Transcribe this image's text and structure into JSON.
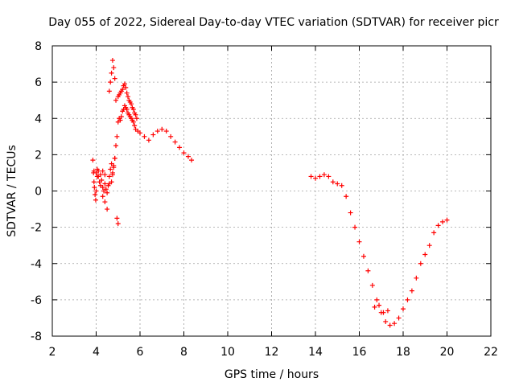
{
  "chart_data": {
    "type": "scatter",
    "title": "Day 055 of 2022, Sidereal Day-to-day VTEC variation (SDTVAR) for receiver picr",
    "xlabel": "GPS time / hours",
    "ylabel": "SDTVAR / TECUs",
    "xlim": [
      2,
      22
    ],
    "ylim": [
      -8,
      8
    ],
    "xticks": [
      2,
      4,
      6,
      8,
      10,
      12,
      14,
      16,
      18,
      20,
      22
    ],
    "yticks": [
      -8,
      -6,
      -4,
      -2,
      0,
      2,
      4,
      6,
      8
    ],
    "grid": true,
    "marker": "+",
    "series_color": "#ff0000",
    "series": [
      {
        "name": "SDTVAR",
        "x": [
          3.85,
          3.88,
          3.9,
          3.92,
          3.95,
          3.98,
          4.0,
          4.05,
          4.1,
          4.15,
          4.2,
          4.25,
          4.3,
          4.35,
          4.4,
          4.45,
          4.5,
          4.55,
          4.6,
          4.65,
          4.7,
          4.75,
          4.8,
          4.85,
          4.9,
          4.95,
          5.0,
          5.05,
          5.1,
          5.15,
          5.2,
          5.25,
          5.3,
          5.35,
          5.4,
          5.45,
          5.5,
          5.55,
          5.6,
          5.65,
          5.7,
          5.75,
          5.8,
          5.9,
          6.0,
          6.2,
          6.4,
          6.6,
          6.8,
          7.0,
          7.2,
          7.4,
          7.6,
          7.8,
          8.0,
          8.2,
          8.35,
          3.9,
          4.0,
          4.05,
          4.1,
          4.2,
          4.3,
          4.4,
          4.5,
          4.6,
          4.7,
          4.75,
          4.8,
          4.85,
          4.9,
          5.0,
          5.05,
          5.1,
          5.15,
          5.2,
          5.25,
          5.3,
          5.35,
          5.4,
          5.45,
          5.5,
          5.55,
          5.6,
          5.65,
          5.7,
          5.75,
          5.8,
          5.85,
          4.3,
          4.4,
          4.95,
          5.0,
          4.6,
          4.65,
          4.7,
          4.75,
          4.8,
          4.85,
          13.8,
          14.0,
          14.2,
          14.4,
          14.6,
          14.8,
          15.0,
          15.2,
          15.4,
          15.6,
          15.8,
          16.0,
          16.2,
          16.4,
          16.6,
          16.8,
          17.0,
          17.2,
          17.4,
          17.6,
          17.8,
          18.0,
          18.2,
          18.4,
          18.6,
          18.8,
          19.0,
          19.2,
          19.4,
          19.6,
          19.8,
          20.0,
          16.7,
          16.9,
          17.1,
          17.3
        ],
        "y": [
          1.7,
          1.0,
          0.5,
          0.2,
          -0.2,
          -0.5,
          0.0,
          1.2,
          0.8,
          0.5,
          0.3,
          0.6,
          0.2,
          0.0,
          0.4,
          0.1,
          -0.1,
          0.3,
          0.8,
          1.2,
          1.5,
          1.0,
          1.4,
          1.8,
          2.5,
          3.0,
          3.8,
          4.0,
          3.9,
          4.1,
          4.4,
          4.5,
          4.7,
          4.6,
          4.5,
          4.3,
          4.2,
          4.1,
          4.0,
          3.9,
          3.8,
          3.6,
          3.4,
          3.3,
          3.2,
          3.0,
          2.8,
          3.1,
          3.3,
          3.4,
          3.3,
          3.0,
          2.7,
          2.4,
          2.1,
          1.9,
          1.7,
          1.1,
          1.0,
          0.8,
          1.1,
          0.9,
          -0.3,
          -0.6,
          -1.0,
          0.4,
          0.5,
          0.9,
          1.3,
          1.8,
          5.0,
          5.2,
          5.3,
          5.4,
          5.5,
          5.6,
          5.8,
          5.9,
          5.7,
          5.4,
          5.2,
          5.0,
          4.9,
          4.8,
          4.6,
          4.5,
          4.3,
          4.2,
          4.0,
          1.1,
          0.9,
          -1.5,
          -1.8,
          5.5,
          6.0,
          6.5,
          7.2,
          6.8,
          6.2,
          0.8,
          0.7,
          0.8,
          0.9,
          0.8,
          0.5,
          0.4,
          0.3,
          -0.3,
          -1.2,
          -2.0,
          -2.8,
          -3.6,
          -4.4,
          -5.2,
          -6.0,
          -6.7,
          -7.2,
          -7.4,
          -7.3,
          -7.0,
          -6.5,
          -6.0,
          -5.5,
          -4.8,
          -4.0,
          -3.5,
          -3.0,
          -2.3,
          -1.9,
          -1.7,
          -1.6,
          -6.4,
          -6.3,
          -6.7,
          -6.6
        ]
      }
    ]
  }
}
